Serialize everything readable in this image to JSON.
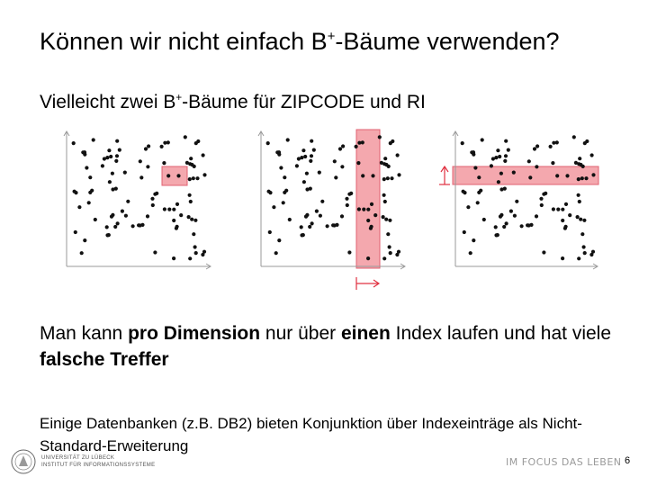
{
  "slide": {
    "title_main": "Können wir nicht einfach B",
    "title_sup": "+",
    "title_rest": "-Bäume verwenden?",
    "subtitle_main": "Vielleicht zwei B",
    "subtitle_sup": "+",
    "subtitle_rest": "-Bäume für ZIPCODE und RI",
    "para1_a": "Man kann ",
    "para1_b": "pro Dimension",
    "para1_c": " nur über ",
    "para1_d": "einen",
    "para1_e": " Index laufen und hat viele ",
    "para1_f": "falsche Treffer",
    "para2": "Einige Datenbanken (z.B. DB2) bieten Konjunktion über Indexeinträge als Nicht-Standard-Erweiterung",
    "footer_university": "UNIVERSITÄT ZU LÜBECK",
    "footer_institute": "INSTITUT FÜR INFORMATIONSSYSTEME",
    "footer_motto": "IM FOCUS DAS LEBEN",
    "page_number": "6"
  },
  "colors": {
    "highlight_fill": "#f4a8ae",
    "highlight_stroke": "#e06070",
    "arrow_red": "#e03040",
    "axis": "#999999",
    "dot": "#111111"
  }
}
